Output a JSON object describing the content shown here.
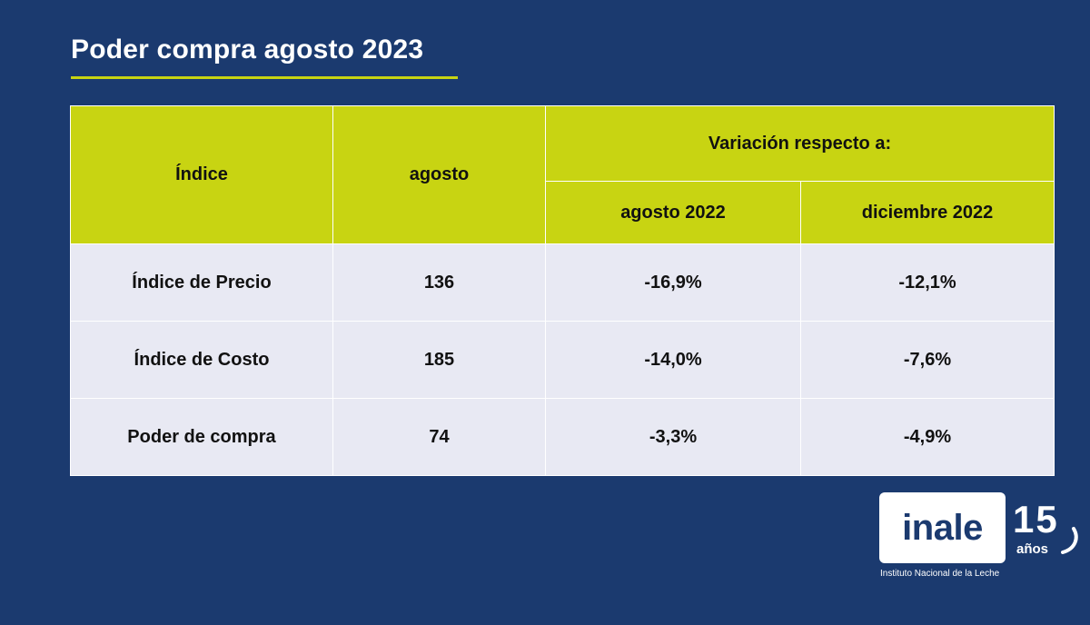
{
  "title": "Poder compra agosto 2023",
  "colors": {
    "background": "#1b3a6f",
    "accent": "#c8d412",
    "row_bg": "#e8e9f3"
  },
  "table": {
    "header": {
      "col_indice": "Índice",
      "col_agosto": "agosto",
      "variation_group": "Variación respecto a:",
      "sub_agosto_2022": "agosto 2022",
      "sub_diciembre_2022": "diciembre 2022"
    },
    "rows": [
      {
        "indice": "Índice de Precio",
        "agosto": "136",
        "var_agosto_2022": "-16,9%",
        "var_diciembre_2022": "-12,1%"
      },
      {
        "indice": "Índice de Costo",
        "agosto": "185",
        "var_agosto_2022": "-14,0%",
        "var_diciembre_2022": "-7,6%"
      },
      {
        "indice": "Poder de compra",
        "agosto": "74",
        "var_agosto_2022": "-3,3%",
        "var_diciembre_2022": "-4,9%"
      }
    ]
  },
  "logo": {
    "name": "inale",
    "anniversary_number": "15",
    "anniversary_word": "años",
    "caption": "Instituto Nacional de la Leche"
  }
}
